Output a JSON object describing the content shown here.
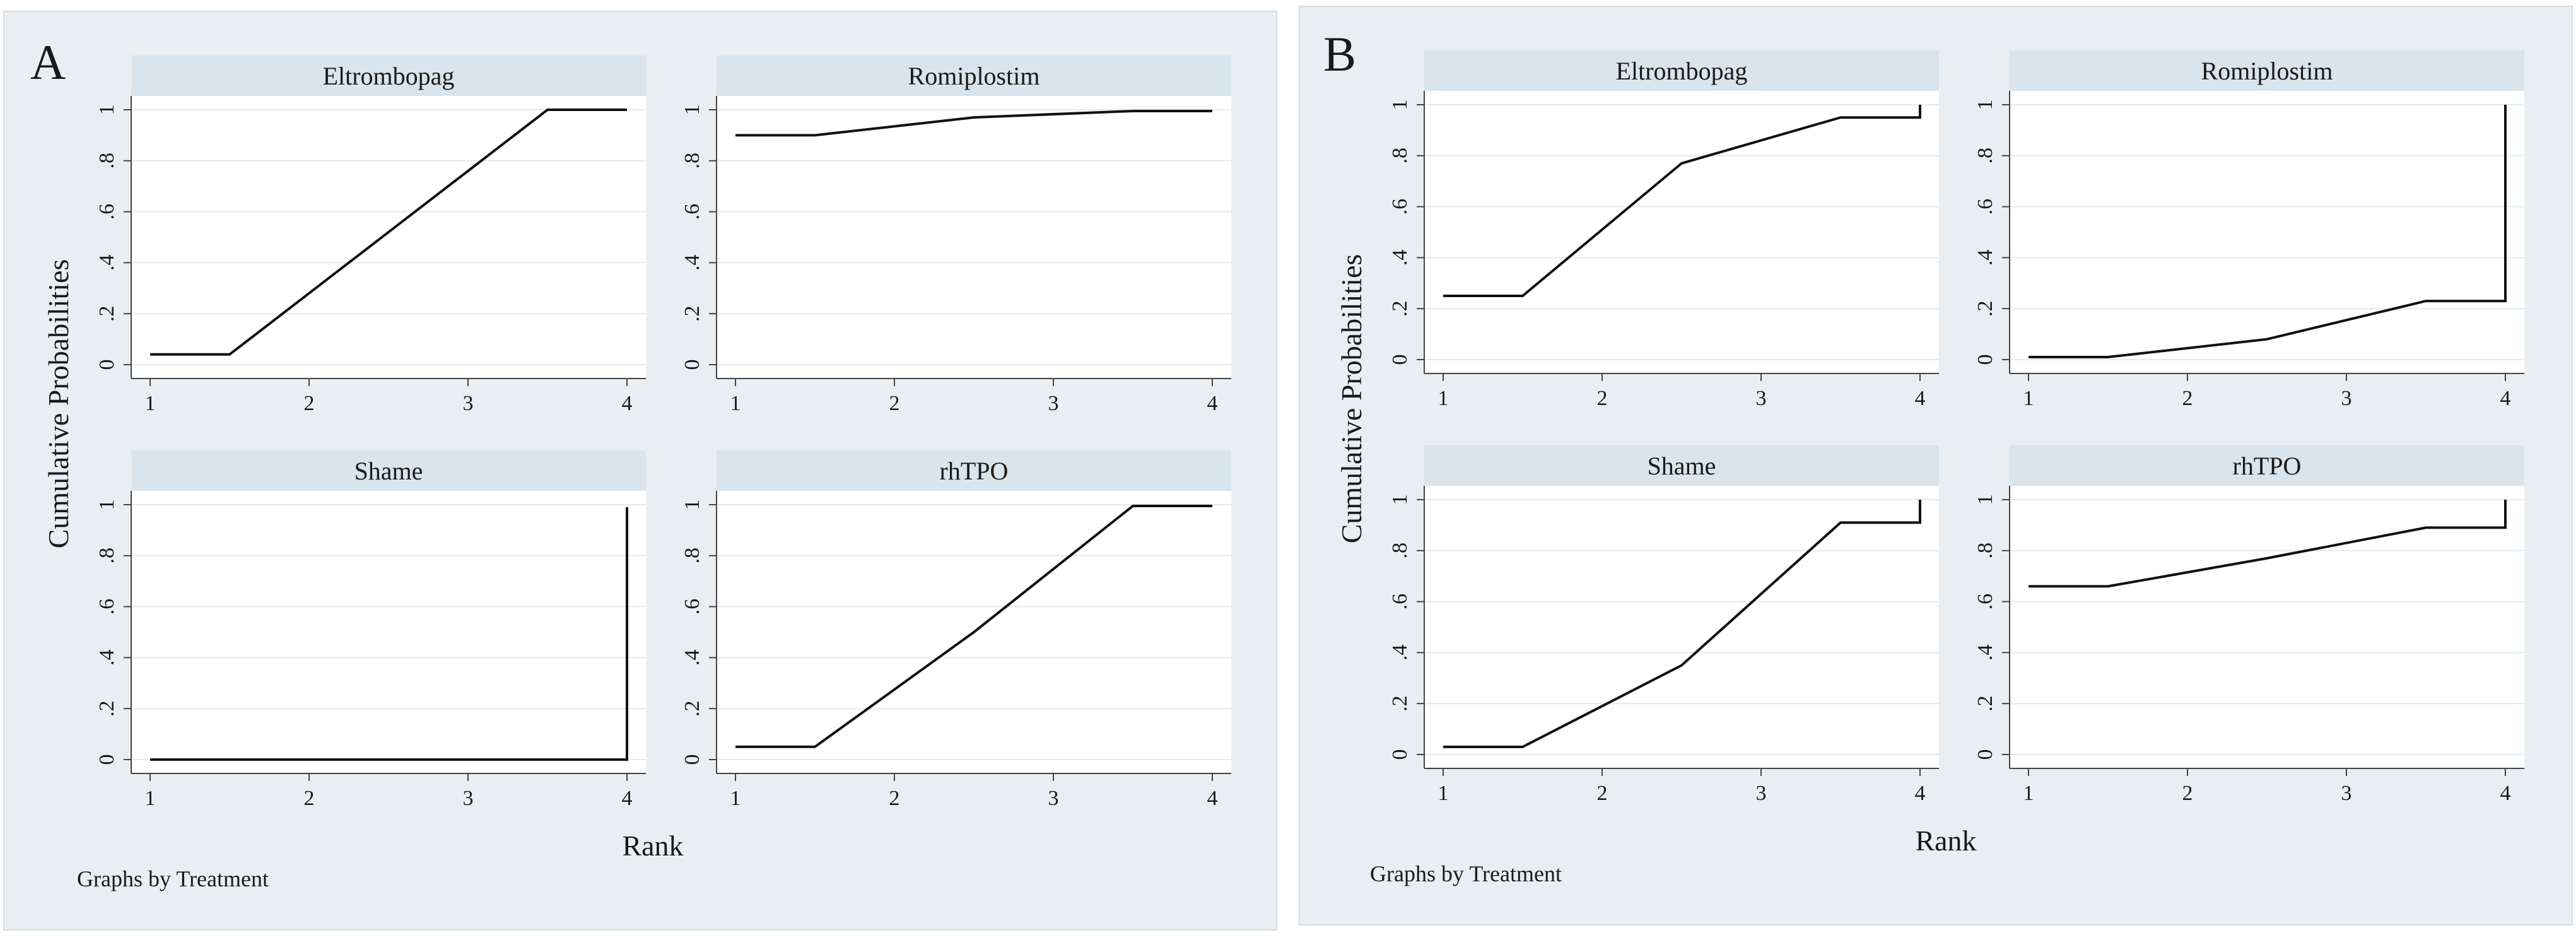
{
  "figure": {
    "panels": [
      {
        "letter": "A",
        "ylabel": "Cumulative Probabilities",
        "xlabel": "Rank",
        "note": "Graphs by Treatment"
      },
      {
        "letter": "B",
        "ylabel": "Cumulative Probabilities",
        "xlabel": "Rank",
        "note": "Graphs by Treatment"
      }
    ]
  },
  "chart_data": [
    {
      "type": "line",
      "panel": "A",
      "title": "",
      "xlabel": "Rank",
      "ylabel": "Cumulative Probabilities",
      "xlim": [
        1,
        4
      ],
      "ylim": [
        0,
        1
      ],
      "x_ticks": [
        "1",
        "2",
        "3",
        "4"
      ],
      "y_ticks": [
        "0",
        ".2",
        ".4",
        ".6",
        ".8",
        "1"
      ],
      "grid": true,
      "facet_by": "Treatment",
      "series": [
        {
          "name": "Eltrombopag",
          "points": [
            [
              1,
              0.04
            ],
            [
              1.5,
              0.04
            ],
            [
              2.5,
              0.52
            ],
            [
              3.5,
              1.0
            ],
            [
              4,
              1.0
            ]
          ]
        },
        {
          "name": "Romiplostim",
          "points": [
            [
              1,
              0.9
            ],
            [
              1.5,
              0.9
            ],
            [
              2.5,
              0.97
            ],
            [
              3.5,
              0.995
            ],
            [
              4,
              0.995
            ]
          ]
        },
        {
          "name": "Shame",
          "points": [
            [
              1,
              0.0
            ],
            [
              1.5,
              0.0
            ],
            [
              2.5,
              0.0
            ],
            [
              3.5,
              0.0
            ],
            [
              4,
              0.0
            ],
            [
              4,
              0.99
            ]
          ]
        },
        {
          "name": "rhTPO",
          "points": [
            [
              1,
              0.05
            ],
            [
              1.5,
              0.05
            ],
            [
              2.5,
              0.5
            ],
            [
              3.5,
              0.995
            ],
            [
              4,
              0.995
            ]
          ]
        }
      ]
    },
    {
      "type": "line",
      "panel": "B",
      "title": "",
      "xlabel": "Rank",
      "ylabel": "Cumulative Probabilities",
      "xlim": [
        1,
        4
      ],
      "ylim": [
        0,
        1
      ],
      "x_ticks": [
        "1",
        "2",
        "3",
        "4"
      ],
      "y_ticks": [
        "0",
        ".2",
        ".4",
        ".6",
        ".8",
        "1"
      ],
      "grid": true,
      "facet_by": "Treatment",
      "series": [
        {
          "name": "Eltrombopag",
          "points": [
            [
              1,
              0.25
            ],
            [
              1.5,
              0.25
            ],
            [
              2.5,
              0.77
            ],
            [
              3.5,
              0.95
            ],
            [
              4,
              0.95
            ],
            [
              4,
              1.0
            ]
          ]
        },
        {
          "name": "Romiplostim",
          "points": [
            [
              1,
              0.01
            ],
            [
              1.5,
              0.01
            ],
            [
              2.5,
              0.08
            ],
            [
              3.5,
              0.23
            ],
            [
              4,
              0.23
            ],
            [
              4,
              1.0
            ]
          ]
        },
        {
          "name": "Shame",
          "points": [
            [
              1,
              0.03
            ],
            [
              1.5,
              0.03
            ],
            [
              2.5,
              0.35
            ],
            [
              3.5,
              0.91
            ],
            [
              4,
              0.91
            ],
            [
              4,
              1.0
            ]
          ]
        },
        {
          "name": "rhTPO",
          "points": [
            [
              1,
              0.66
            ],
            [
              1.5,
              0.66
            ],
            [
              2.5,
              0.77
            ],
            [
              3.5,
              0.89
            ],
            [
              4,
              0.89
            ],
            [
              4,
              1.0
            ]
          ]
        }
      ]
    }
  ]
}
